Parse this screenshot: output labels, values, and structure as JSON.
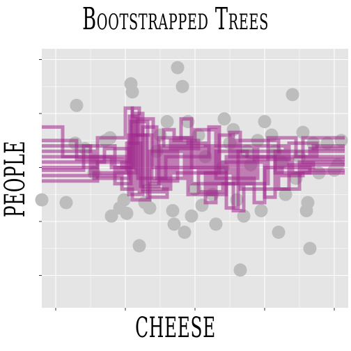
{
  "chart_data": {
    "type": "scatter",
    "title": "Bootstrapped Trees",
    "xlabel": "CHEESE",
    "ylabel": "PEOPLE",
    "x_ticks_labeled": false,
    "y_ticks_labeled": false,
    "grid": true,
    "xlim": [
      -0.2,
      4.2
    ],
    "ylim": [
      -0.6,
      4.2
    ],
    "colors": {
      "panel": "#e5e5e5",
      "grid": "#ffffff",
      "points": "#bdbdbd",
      "lines": "#a0288c"
    },
    "points": [
      {
        "x": -0.2,
        "y": 1.4
      },
      {
        "x": 0.15,
        "y": 1.35
      },
      {
        "x": 0.3,
        "y": 3.15
      },
      {
        "x": 0.28,
        "y": 2.45
      },
      {
        "x": 0.42,
        "y": 2.35
      },
      {
        "x": 0.55,
        "y": 1.9
      },
      {
        "x": 0.72,
        "y": 2.5
      },
      {
        "x": 0.78,
        "y": 2.55
      },
      {
        "x": 0.8,
        "y": 1.1
      },
      {
        "x": 0.92,
        "y": 1.25
      },
      {
        "x": 0.98,
        "y": 1.4
      },
      {
        "x": 1.02,
        "y": 1.15
      },
      {
        "x": 1.08,
        "y": 3.55
      },
      {
        "x": 1.1,
        "y": 3.4
      },
      {
        "x": 1.2,
        "y": 0.55
      },
      {
        "x": 1.28,
        "y": 1.35
      },
      {
        "x": 1.35,
        "y": 1.25
      },
      {
        "x": 1.45,
        "y": 2.3
      },
      {
        "x": 1.5,
        "y": 2.6
      },
      {
        "x": 1.6,
        "y": 2.85
      },
      {
        "x": 1.68,
        "y": 1.2
      },
      {
        "x": 1.7,
        "y": 0.95
      },
      {
        "x": 1.75,
        "y": 3.85
      },
      {
        "x": 1.82,
        "y": 3.5
      },
      {
        "x": 1.85,
        "y": 0.8
      },
      {
        "x": 1.9,
        "y": 2.85
      },
      {
        "x": 1.95,
        "y": 1.1
      },
      {
        "x": 2.0,
        "y": 1.6
      },
      {
        "x": 2.05,
        "y": 2.6
      },
      {
        "x": 2.1,
        "y": 1.3
      },
      {
        "x": 2.15,
        "y": 2.2
      },
      {
        "x": 2.25,
        "y": 1.5
      },
      {
        "x": 2.3,
        "y": 0.95
      },
      {
        "x": 2.4,
        "y": 2.0
      },
      {
        "x": 2.42,
        "y": 2.9
      },
      {
        "x": 2.5,
        "y": 2.45
      },
      {
        "x": 2.55,
        "y": 2.7
      },
      {
        "x": 2.6,
        "y": 1.4
      },
      {
        "x": 2.65,
        "y": 0.1
      },
      {
        "x": 2.7,
        "y": 1.1
      },
      {
        "x": 2.75,
        "y": 2.3
      },
      {
        "x": 2.8,
        "y": 2.05
      },
      {
        "x": 2.9,
        "y": 2.5
      },
      {
        "x": 2.95,
        "y": 1.2
      },
      {
        "x": 3.0,
        "y": 2.85
      },
      {
        "x": 3.1,
        "y": 2.6
      },
      {
        "x": 3.15,
        "y": 2.3
      },
      {
        "x": 3.2,
        "y": 0.8
      },
      {
        "x": 3.25,
        "y": 2.1
      },
      {
        "x": 3.3,
        "y": 1.5
      },
      {
        "x": 3.4,
        "y": 3.35
      },
      {
        "x": 3.45,
        "y": 1.8
      },
      {
        "x": 3.5,
        "y": 2.2
      },
      {
        "x": 3.55,
        "y": 2.65
      },
      {
        "x": 3.6,
        "y": 1.2
      },
      {
        "x": 3.62,
        "y": 1.35
      },
      {
        "x": 3.65,
        "y": 0.5
      },
      {
        "x": 3.7,
        "y": 2.45
      },
      {
        "x": 3.78,
        "y": 1.9
      },
      {
        "x": 3.9,
        "y": 2.45
      },
      {
        "x": 4.0,
        "y": 1.95
      },
      {
        "x": 4.05,
        "y": 2.05
      },
      {
        "x": 4.1,
        "y": 2.5
      }
    ],
    "trees": [
      [
        [
          -0.2,
          2.3
        ],
        [
          0.55,
          2.3
        ],
        [
          0.55,
          1.8
        ],
        [
          1.05,
          1.8
        ],
        [
          1.05,
          2.6
        ],
        [
          1.3,
          2.6
        ],
        [
          1.3,
          1.7
        ],
        [
          1.5,
          1.7
        ],
        [
          1.5,
          2.4
        ],
        [
          2.2,
          2.4
        ],
        [
          2.2,
          1.5
        ],
        [
          2.45,
          1.5
        ],
        [
          2.45,
          2.2
        ],
        [
          3.15,
          2.2
        ],
        [
          3.15,
          1.9
        ],
        [
          3.65,
          1.9
        ],
        [
          3.65,
          2.35
        ],
        [
          4.15,
          2.35
        ]
      ],
      [
        [
          -0.2,
          2.0
        ],
        [
          0.6,
          2.0
        ],
        [
          0.6,
          2.55
        ],
        [
          1.0,
          2.55
        ],
        [
          1.0,
          3.1
        ],
        [
          1.1,
          3.1
        ],
        [
          1.1,
          1.4
        ],
        [
          1.35,
          1.4
        ],
        [
          1.35,
          2.3
        ],
        [
          1.8,
          2.3
        ],
        [
          1.8,
          2.9
        ],
        [
          1.95,
          2.9
        ],
        [
          1.95,
          1.7
        ],
        [
          2.6,
          1.7
        ],
        [
          2.6,
          2.5
        ],
        [
          3.2,
          2.5
        ],
        [
          3.2,
          1.6
        ],
        [
          3.5,
          1.6
        ],
        [
          3.5,
          2.1
        ],
        [
          4.15,
          2.1
        ]
      ],
      [
        [
          -0.2,
          1.85
        ],
        [
          0.9,
          1.85
        ],
        [
          0.9,
          2.0
        ],
        [
          1.1,
          2.0
        ],
        [
          1.1,
          3.1
        ],
        [
          1.2,
          3.1
        ],
        [
          1.2,
          1.55
        ],
        [
          1.55,
          1.55
        ],
        [
          1.55,
          2.7
        ],
        [
          1.7,
          2.7
        ],
        [
          1.7,
          1.9
        ],
        [
          2.35,
          1.9
        ],
        [
          2.35,
          2.6
        ],
        [
          2.55,
          2.6
        ],
        [
          2.55,
          1.2
        ],
        [
          2.7,
          1.2
        ],
        [
          2.7,
          2.2
        ],
        [
          3.6,
          2.2
        ],
        [
          3.6,
          1.95
        ],
        [
          4.15,
          1.95
        ]
      ],
      [
        [
          -0.2,
          2.5
        ],
        [
          0.3,
          2.5
        ],
        [
          0.3,
          2.15
        ],
        [
          0.95,
          2.15
        ],
        [
          0.95,
          1.6
        ],
        [
          1.15,
          1.6
        ],
        [
          1.15,
          2.9
        ],
        [
          1.4,
          2.9
        ],
        [
          1.4,
          2.0
        ],
        [
          2.0,
          2.0
        ],
        [
          2.0,
          2.7
        ],
        [
          2.3,
          2.7
        ],
        [
          2.3,
          1.8
        ],
        [
          2.9,
          1.8
        ],
        [
          2.9,
          2.4
        ],
        [
          3.3,
          2.4
        ],
        [
          3.3,
          2.05
        ],
        [
          4.15,
          2.05
        ]
      ],
      [
        [
          -0.2,
          2.1
        ],
        [
          0.7,
          2.1
        ],
        [
          0.7,
          2.35
        ],
        [
          1.05,
          2.35
        ],
        [
          1.05,
          1.5
        ],
        [
          1.25,
          1.5
        ],
        [
          1.25,
          2.75
        ],
        [
          1.45,
          2.75
        ],
        [
          1.45,
          1.8
        ],
        [
          1.85,
          1.8
        ],
        [
          1.85,
          2.45
        ],
        [
          2.15,
          2.45
        ],
        [
          2.15,
          1.35
        ],
        [
          2.3,
          1.35
        ],
        [
          2.3,
          2.3
        ],
        [
          2.75,
          2.3
        ],
        [
          2.75,
          1.7
        ],
        [
          3.05,
          1.7
        ],
        [
          3.05,
          2.55
        ],
        [
          3.45,
          2.55
        ],
        [
          3.45,
          2.2
        ],
        [
          4.15,
          2.2
        ]
      ],
      [
        [
          -0.2,
          2.75
        ],
        [
          0.1,
          2.75
        ],
        [
          0.1,
          2.2
        ],
        [
          1.0,
          2.2
        ],
        [
          1.0,
          1.9
        ],
        [
          1.15,
          1.9
        ],
        [
          1.15,
          3.0
        ],
        [
          1.25,
          3.0
        ],
        [
          1.25,
          1.6
        ],
        [
          1.65,
          1.6
        ],
        [
          1.65,
          2.5
        ],
        [
          2.05,
          2.5
        ],
        [
          2.05,
          1.55
        ],
        [
          2.4,
          1.55
        ],
        [
          2.4,
          2.1
        ],
        [
          3.0,
          2.1
        ],
        [
          3.0,
          1.45
        ],
        [
          3.15,
          1.45
        ],
        [
          3.15,
          2.3
        ],
        [
          4.15,
          2.3
        ]
      ],
      [
        [
          -0.2,
          1.95
        ],
        [
          0.4,
          1.95
        ],
        [
          0.4,
          2.4
        ],
        [
          0.85,
          2.4
        ],
        [
          0.85,
          1.7
        ],
        [
          1.08,
          1.7
        ],
        [
          1.08,
          2.85
        ],
        [
          1.32,
          2.85
        ],
        [
          1.32,
          1.45
        ],
        [
          1.6,
          1.45
        ],
        [
          1.6,
          2.35
        ],
        [
          2.1,
          2.35
        ],
        [
          2.1,
          1.9
        ],
        [
          2.5,
          1.9
        ],
        [
          2.5,
          2.65
        ],
        [
          2.65,
          2.65
        ],
        [
          2.65,
          1.6
        ],
        [
          3.35,
          1.6
        ],
        [
          3.35,
          2.45
        ],
        [
          3.75,
          2.45
        ],
        [
          3.75,
          2.15
        ],
        [
          4.15,
          2.15
        ]
      ],
      [
        [
          -0.2,
          2.2
        ],
        [
          0.8,
          2.2
        ],
        [
          0.8,
          2.0
        ],
        [
          1.12,
          2.0
        ],
        [
          1.12,
          2.6
        ],
        [
          1.38,
          2.6
        ],
        [
          1.38,
          1.75
        ],
        [
          1.75,
          1.75
        ],
        [
          1.75,
          2.55
        ],
        [
          1.9,
          2.55
        ],
        [
          1.9,
          1.5
        ],
        [
          2.25,
          1.5
        ],
        [
          2.25,
          2.4
        ],
        [
          2.85,
          2.4
        ],
        [
          2.85,
          1.35
        ],
        [
          3.0,
          1.35
        ],
        [
          3.0,
          2.0
        ],
        [
          3.7,
          2.0
        ],
        [
          3.7,
          2.4
        ],
        [
          4.15,
          2.4
        ]
      ],
      [
        [
          -0.2,
          2.4
        ],
        [
          0.5,
          2.4
        ],
        [
          0.5,
          1.9
        ],
        [
          1.02,
          1.9
        ],
        [
          1.02,
          2.45
        ],
        [
          1.22,
          2.45
        ],
        [
          1.22,
          1.65
        ],
        [
          1.48,
          1.65
        ],
        [
          1.48,
          2.55
        ],
        [
          1.95,
          2.55
        ],
        [
          1.95,
          2.0
        ],
        [
          2.45,
          2.0
        ],
        [
          2.45,
          1.25
        ],
        [
          2.62,
          1.25
        ],
        [
          2.62,
          2.3
        ],
        [
          3.25,
          2.3
        ],
        [
          3.25,
          1.85
        ],
        [
          3.55,
          1.85
        ],
        [
          3.55,
          2.55
        ],
        [
          4.15,
          2.55
        ]
      ],
      [
        [
          -0.2,
          1.75
        ],
        [
          0.6,
          1.75
        ],
        [
          0.6,
          2.1
        ],
        [
          1.06,
          2.1
        ],
        [
          1.06,
          2.95
        ],
        [
          1.18,
          2.95
        ],
        [
          1.18,
          1.8
        ],
        [
          1.58,
          1.8
        ],
        [
          1.58,
          2.2
        ],
        [
          2.2,
          2.2
        ],
        [
          2.2,
          2.75
        ],
        [
          2.35,
          2.75
        ],
        [
          2.35,
          1.7
        ],
        [
          2.8,
          1.7
        ],
        [
          2.8,
          2.15
        ],
        [
          3.4,
          2.15
        ],
        [
          3.4,
          1.9
        ],
        [
          4.15,
          1.9
        ]
      ]
    ]
  }
}
